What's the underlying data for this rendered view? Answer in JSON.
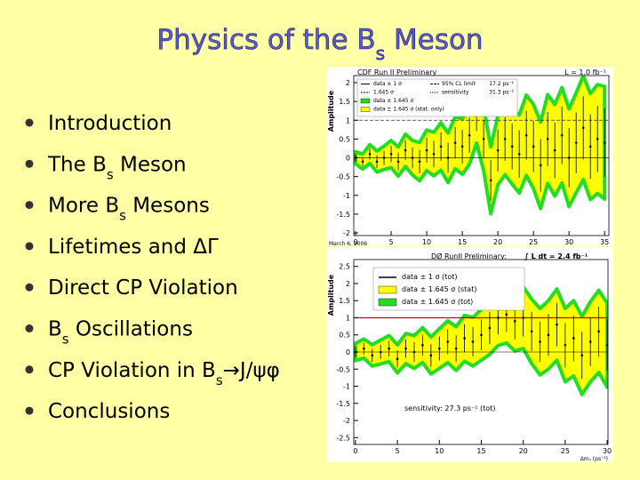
{
  "title": [
    {
      "text": "Physics of the B"
    },
    {
      "sub": "s"
    },
    {
      "text": " Meson"
    }
  ],
  "bullets": [
    [
      {
        "text": "Introduction"
      }
    ],
    [
      {
        "text": "The B"
      },
      {
        "sub": "s"
      },
      {
        "text": " Meson"
      }
    ],
    [
      {
        "text": "More B"
      },
      {
        "sub": "s"
      },
      {
        "text": " Mesons"
      }
    ],
    [
      {
        "text": "Lifetimes and ΔΓ"
      }
    ],
    [
      {
        "text": "Direct CP Violation"
      }
    ],
    [
      {
        "text": "B"
      },
      {
        "sub": "s"
      },
      {
        "text": " Oscillations"
      }
    ],
    [
      {
        "text": "CP Violation in B"
      },
      {
        "sub": "s"
      },
      {
        "text": "→J/ψφ"
      }
    ],
    [
      {
        "text": "Conclusions"
      }
    ]
  ],
  "plots": [
    {
      "header": "CDF Run II Preliminary",
      "lumi": "L = 1.0 fb⁻¹",
      "ylabel": "Amplitude",
      "date": "March 6, 2006",
      "legend": [
        "data ± 1 σ",
        "1.645 σ",
        "data ± 1.645 σ",
        "data ± 1.645 σ (stat. only)"
      ],
      "limits": [
        {
          "label": "95% CL limit",
          "value": "17.2 ps⁻¹"
        },
        {
          "label": "sensitivity",
          "value": "31.3 ps⁻¹"
        }
      ],
      "xlim": [
        -0.25,
        35.6
      ],
      "ylim": [
        -2.07,
        2.19
      ],
      "xticks": [
        0,
        5,
        10,
        15,
        20,
        25,
        30,
        35
      ],
      "yticks": [
        2,
        1.5,
        1,
        0.5,
        0,
        -0.5,
        -1,
        -1.5,
        -2
      ],
      "ref": 1,
      "x": [
        0,
        1,
        2,
        3,
        4,
        5,
        6,
        7,
        8,
        9,
        10,
        11,
        12,
        13,
        14,
        15,
        16,
        17,
        18,
        19,
        20,
        21,
        22,
        23,
        24,
        25,
        26,
        27,
        28,
        29,
        30,
        31,
        32,
        33,
        34,
        35
      ],
      "values": [
        0.0,
        -0.1,
        0.1,
        -0.1,
        0.0,
        0.1,
        -0.1,
        0.2,
        0.0,
        -0.1,
        0.2,
        0.1,
        0.3,
        0.0,
        0.4,
        0.3,
        0.6,
        1.2,
        0.5,
        -0.6,
        0.2,
        0.5,
        0.3,
        0.1,
        0.6,
        0.3,
        -0.2,
        0.5,
        0.2,
        0.6,
        0.0,
        0.4,
        0.8,
        0.3,
        0.5,
        0.4
      ],
      "errors": [
        0.1,
        0.12,
        0.15,
        0.17,
        0.19,
        0.22,
        0.24,
        0.26,
        0.28,
        0.31,
        0.33,
        0.35,
        0.38,
        0.4,
        0.42,
        0.45,
        0.47,
        0.49,
        0.51,
        0.54,
        0.56,
        0.58,
        0.61,
        0.63,
        0.65,
        0.68,
        0.7,
        0.72,
        0.74,
        0.77,
        0.79,
        0.81,
        0.84,
        0.86,
        0.88,
        0.91
      ],
      "bands": [
        0.16,
        0.2,
        0.25,
        0.28,
        0.31,
        0.36,
        0.39,
        0.43,
        0.46,
        0.51,
        0.54,
        0.58,
        0.63,
        0.66,
        0.69,
        0.74,
        0.77,
        0.81,
        0.84,
        0.89,
        0.92,
        0.95,
        1.0,
        1.04,
        1.07,
        1.12,
        1.15,
        1.18,
        1.22,
        1.27,
        1.3,
        1.33,
        1.38,
        1.41,
        1.45,
        1.5
      ]
    },
    {
      "header": "DØ RunII Preliminary:",
      "lumi": "∫ L dt = 2.4 fb⁻¹",
      "ylabel": "Amplitude",
      "xlabel": "Δmₛ (ps⁻¹)",
      "legend": [
        "data ± 1 σ (tot)",
        "data ± 1.645 σ (stat)",
        "data ± 1.645 σ (tot)"
      ],
      "sensitivity": "sensitivity: 27.3 ps⁻¹ (tot)",
      "xlim": [
        -0.2,
        30.1
      ],
      "ylim": [
        -2.7,
        2.7
      ],
      "xticks": [
        0,
        5,
        10,
        15,
        20,
        25,
        30
      ],
      "yticks": [
        2.5,
        2,
        1.5,
        1,
        0.5,
        0,
        -0.5,
        -1,
        -1.5,
        -2,
        -2.5
      ],
      "ref": 1,
      "x": [
        0,
        1,
        2,
        3,
        4,
        5,
        6,
        7,
        8,
        9,
        10,
        11,
        12,
        13,
        14,
        15,
        16,
        17,
        18,
        19,
        20,
        21,
        22,
        23,
        24,
        25,
        26,
        27,
        28,
        29,
        30
      ],
      "values": [
        0.0,
        0.1,
        -0.1,
        0.0,
        0.1,
        -0.2,
        0.1,
        0.0,
        0.2,
        -0.1,
        0.1,
        0.3,
        0.1,
        0.4,
        0.3,
        0.5,
        0.7,
        1.0,
        1.1,
        0.9,
        1.0,
        0.6,
        0.3,
        0.5,
        0.8,
        0.2,
        0.4,
        -0.1,
        0.3,
        0.6,
        0.2
      ],
      "errors": [
        0.15,
        0.17,
        0.19,
        0.21,
        0.23,
        0.25,
        0.27,
        0.29,
        0.31,
        0.33,
        0.35,
        0.37,
        0.39,
        0.41,
        0.43,
        0.45,
        0.47,
        0.49,
        0.51,
        0.53,
        0.55,
        0.57,
        0.59,
        0.61,
        0.63,
        0.65,
        0.67,
        0.69,
        0.71,
        0.73,
        0.75
      ],
      "bands": [
        0.25,
        0.28,
        0.31,
        0.35,
        0.38,
        0.41,
        0.44,
        0.48,
        0.51,
        0.54,
        0.58,
        0.61,
        0.64,
        0.67,
        0.71,
        0.74,
        0.77,
        0.81,
        0.84,
        0.87,
        0.9,
        0.94,
        0.97,
        1.0,
        1.04,
        1.07,
        1.1,
        1.14,
        1.17,
        1.2,
        1.23
      ]
    }
  ]
}
